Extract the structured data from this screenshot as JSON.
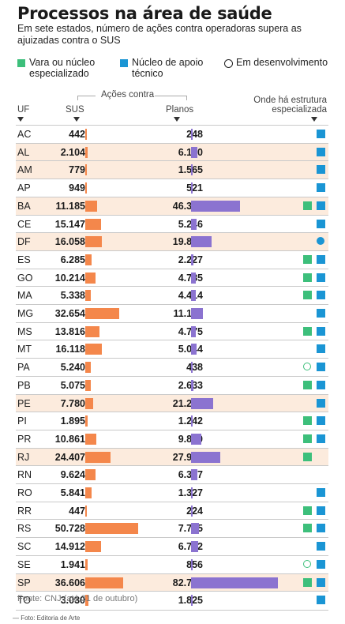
{
  "title": "Processos na área de saúde",
  "subtitle": "Em sete estados, número de ações contra operadoras supera as ajuizadas contra o SUS",
  "legend": {
    "green_label": "Vara ou núcleo especializado",
    "blue_label": "Núcleo de apoio técnico",
    "circle_label": "Em desenvolvimento"
  },
  "headers": {
    "uf": "UF",
    "group": "Ações contra",
    "sus": "SUS",
    "planos": "Planos",
    "estrutura": "Onde há estrutura especializada"
  },
  "colors": {
    "sus_bar": "#f4874b",
    "planos_bar": "#8b73d0",
    "green": "#3dbf7b",
    "blue": "#1a95d4",
    "highlight": "#fcebdd"
  },
  "chart_data": {
    "type": "bar",
    "categories": [
      "AC",
      "AL",
      "AM",
      "AP",
      "BA",
      "CE",
      "DF",
      "ES",
      "GO",
      "MA",
      "MG",
      "MS",
      "MT",
      "PA",
      "PB",
      "PE",
      "PI",
      "PR",
      "RJ",
      "RN",
      "RO",
      "RR",
      "RS",
      "SC",
      "SE",
      "SP",
      "TO"
    ],
    "series": [
      {
        "name": "SUS",
        "values": [
          442,
          2104,
          779,
          949,
          11185,
          15147,
          16058,
          6285,
          10214,
          5338,
          32654,
          13816,
          16118,
          5240,
          5075,
          7780,
          1895,
          10861,
          24407,
          9624,
          5841,
          447,
          50728,
          14912,
          1941,
          36606,
          3030
        ]
      },
      {
        "name": "Planos",
        "values": [
          248,
          6130,
          1565,
          521,
          46370,
          5246,
          19887,
          2227,
          4785,
          4414,
          11190,
          4775,
          5044,
          438,
          2633,
          21239,
          1242,
          9840,
          27988,
          6337,
          1327,
          224,
          7715,
          6712,
          856,
          82753,
          1825
        ]
      }
    ],
    "sus_labels": [
      "442",
      "2.104",
      "779",
      "949",
      "11.185",
      "15.147",
      "16.058",
      "6.285",
      "10.214",
      "5.338",
      "32.654",
      "13.816",
      "16.118",
      "5.240",
      "5.075",
      "7.780",
      "1.895",
      "10.861",
      "24.407",
      "9.624",
      "5.841",
      "447",
      "50.728",
      "14.912",
      "1.941",
      "36.606",
      "3.030"
    ],
    "planos_labels": [
      "248",
      "6.130",
      "1.565",
      "521",
      "46.370",
      "5.246",
      "19.887",
      "2.227",
      "4.785",
      "4.414",
      "11.190",
      "4.775",
      "5.044",
      "438",
      "2.633",
      "21.239",
      "1.242",
      "9.840",
      "27.988",
      "6.337",
      "1.327",
      "224",
      "7.715",
      "6.712",
      "856",
      "82.753",
      "1.825"
    ],
    "highlighted": [
      "AL",
      "AM",
      "BA",
      "DF",
      "PE",
      "RJ",
      "SP"
    ],
    "structure": {
      "AC": [
        "blue"
      ],
      "AL": [
        "blue"
      ],
      "AM": [
        "blue"
      ],
      "AP": [
        "blue"
      ],
      "BA": [
        "green",
        "blue"
      ],
      "CE": [
        "blue"
      ],
      "DF": [
        "blue-dev"
      ],
      "ES": [
        "green",
        "blue"
      ],
      "GO": [
        "green",
        "blue"
      ],
      "MA": [
        "green",
        "blue"
      ],
      "MG": [
        "blue"
      ],
      "MS": [
        "green",
        "blue"
      ],
      "MT": [
        "blue"
      ],
      "PA": [
        "green-dev",
        "blue"
      ],
      "PB": [
        "green",
        "blue"
      ],
      "PE": [
        "blue"
      ],
      "PI": [
        "green",
        "blue"
      ],
      "PR": [
        "green",
        "blue"
      ],
      "RJ": [
        "green"
      ],
      "RN": [],
      "RO": [
        "blue"
      ],
      "RR": [
        "green",
        "blue"
      ],
      "RS": [
        "green",
        "blue"
      ],
      "SC": [
        "blue"
      ],
      "SE": [
        "green-dev",
        "blue"
      ],
      "SP": [
        "green",
        "blue"
      ],
      "TO": [
        "blue"
      ]
    }
  },
  "source": "Fonte: CNJ (até 31 de outubro)",
  "credit": "— Foto: Editoria de Arte"
}
